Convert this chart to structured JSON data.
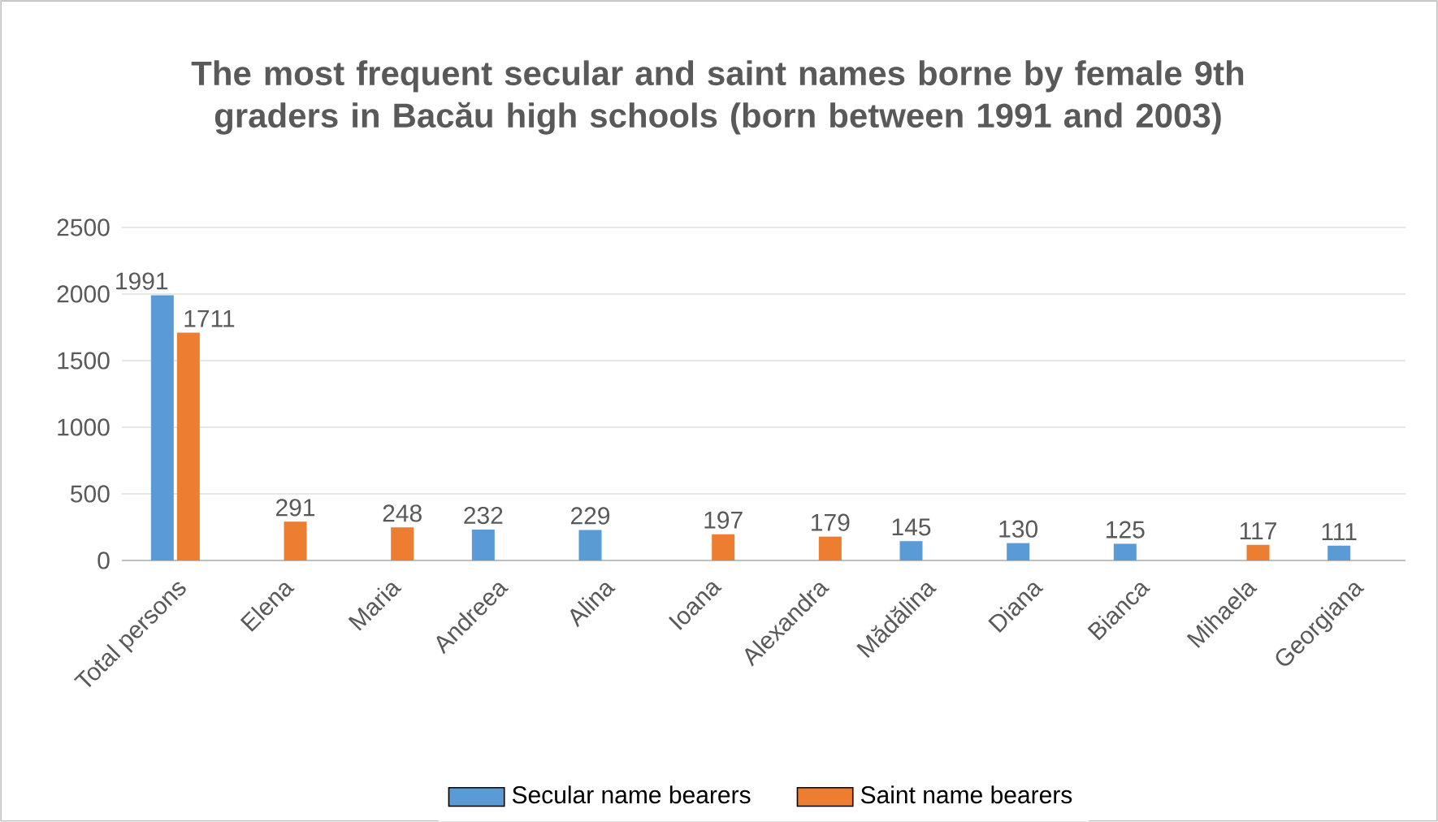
{
  "chart_data": {
    "type": "bar",
    "title": "The most frequent secular and saint names borne by female 9th graders in Bacău high schools (born between 1991 and 2003)",
    "categories": [
      "Total persons",
      "Elena",
      "Maria",
      "Andreea",
      "Alina",
      "Ioana",
      "Alexandra",
      "Mădălina",
      "Diana",
      "Bianca",
      "Mihaela",
      "Georgiana"
    ],
    "series": [
      {
        "name": "Secular name bearers",
        "color": "#5b9bd5",
        "values": [
          1991,
          null,
          null,
          232,
          229,
          null,
          null,
          145,
          130,
          125,
          null,
          111
        ]
      },
      {
        "name": "Saint name bearers",
        "color": "#ed7d31",
        "values": [
          1711,
          291,
          248,
          null,
          null,
          197,
          179,
          null,
          null,
          null,
          117,
          null
        ]
      }
    ],
    "ylim": [
      0,
      2500
    ],
    "yticks": [
      0,
      500,
      1000,
      1500,
      2000,
      2500
    ],
    "grid": "y",
    "legend": "bottom",
    "data_labels": true
  }
}
